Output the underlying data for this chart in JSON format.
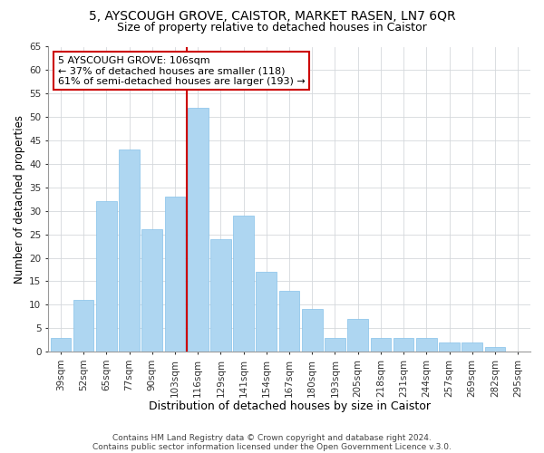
{
  "title": "5, AYSCOUGH GROVE, CAISTOR, MARKET RASEN, LN7 6QR",
  "subtitle": "Size of property relative to detached houses in Caistor",
  "xlabel": "Distribution of detached houses by size in Caistor",
  "ylabel": "Number of detached properties",
  "categories": [
    "39sqm",
    "52sqm",
    "65sqm",
    "77sqm",
    "90sqm",
    "103sqm",
    "116sqm",
    "129sqm",
    "141sqm",
    "154sqm",
    "167sqm",
    "180sqm",
    "193sqm",
    "205sqm",
    "218sqm",
    "231sqm",
    "244sqm",
    "257sqm",
    "269sqm",
    "282sqm",
    "295sqm"
  ],
  "values": [
    3,
    11,
    32,
    43,
    26,
    33,
    52,
    24,
    29,
    17,
    13,
    9,
    3,
    7,
    3,
    3,
    3,
    2,
    2,
    1,
    0
  ],
  "bar_color": "#aed6f1",
  "bar_edge_color": "#85c1e9",
  "vline_color": "#cc0000",
  "annotation_title": "5 AYSCOUGH GROVE: 106sqm",
  "annotation_line1": "← 37% of detached houses are smaller (118)",
  "annotation_line2": "61% of semi-detached houses are larger (193) →",
  "annotation_box_color": "#ffffff",
  "annotation_box_edge": "#cc0000",
  "ylim": [
    0,
    65
  ],
  "yticks": [
    0,
    5,
    10,
    15,
    20,
    25,
    30,
    35,
    40,
    45,
    50,
    55,
    60,
    65
  ],
  "footer1": "Contains HM Land Registry data © Crown copyright and database right 2024.",
  "footer2": "Contains public sector information licensed under the Open Government Licence v.3.0.",
  "bg_color": "#ffffff",
  "grid_color": "#d5d8dc",
  "title_fontsize": 10,
  "subtitle_fontsize": 9,
  "xlabel_fontsize": 9,
  "ylabel_fontsize": 8.5,
  "tick_fontsize": 7.5,
  "footer_fontsize": 6.5,
  "annot_fontsize": 8
}
